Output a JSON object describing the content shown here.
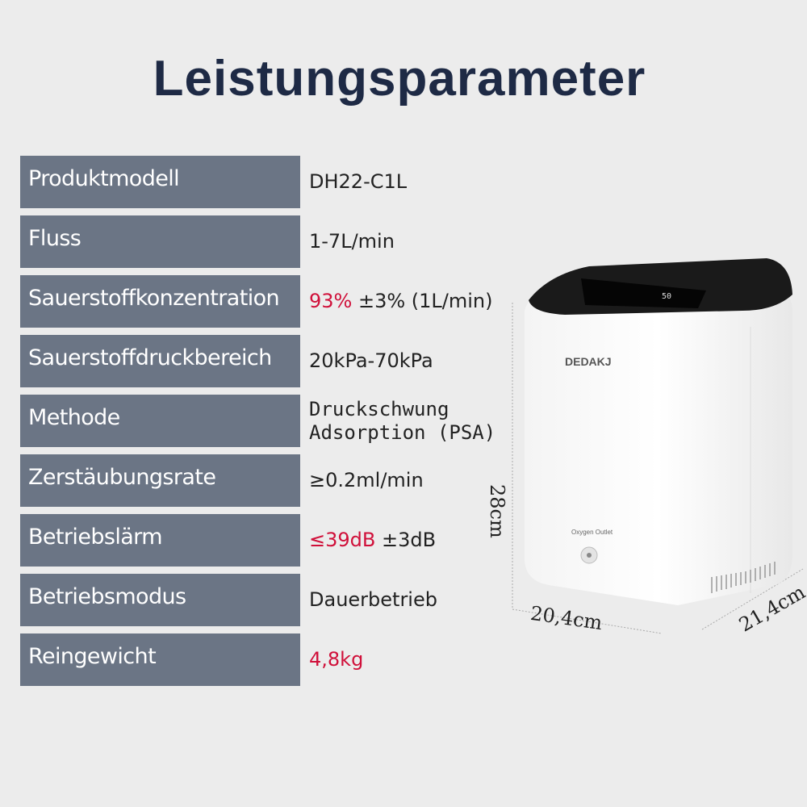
{
  "title": "Leistungsparameter",
  "colors": {
    "label_bg": "#6b7585",
    "title": "#1e2a45",
    "highlight": "#d0103a",
    "background": "#ececec"
  },
  "specs": [
    {
      "label": "Produktmodell",
      "value": "DH22-C1L"
    },
    {
      "label": "Fluss",
      "value": "1-7L/min"
    },
    {
      "label": "Sauerstoffkonzentration",
      "value_highlight": "93%",
      "value": " ±3% (1L/min)"
    },
    {
      "label": "Sauerstoffdruckbereich",
      "value": "20kPa-70kPa"
    },
    {
      "label": "Methode",
      "value_line1": "Druckschwung",
      "value_line2": "Adsorption (PSA)"
    },
    {
      "label": "Zerstäubungsrate",
      "value": "≥0.2ml/min"
    },
    {
      "label": "Betriebslärm",
      "value_highlight": "≤39dB",
      "value": " ±3dB"
    },
    {
      "label": "Betriebsmodus",
      "value": "Dauerbetrieb"
    },
    {
      "label": "Reingewicht",
      "value_highlight": "4,8kg"
    }
  ],
  "product": {
    "brand": "DEDAKJ",
    "outlet_label": "Oxygen Outlet",
    "display_reading": "50"
  },
  "dimensions": {
    "height": "28cm",
    "width": "20,4cm",
    "depth": "21,4cm"
  }
}
